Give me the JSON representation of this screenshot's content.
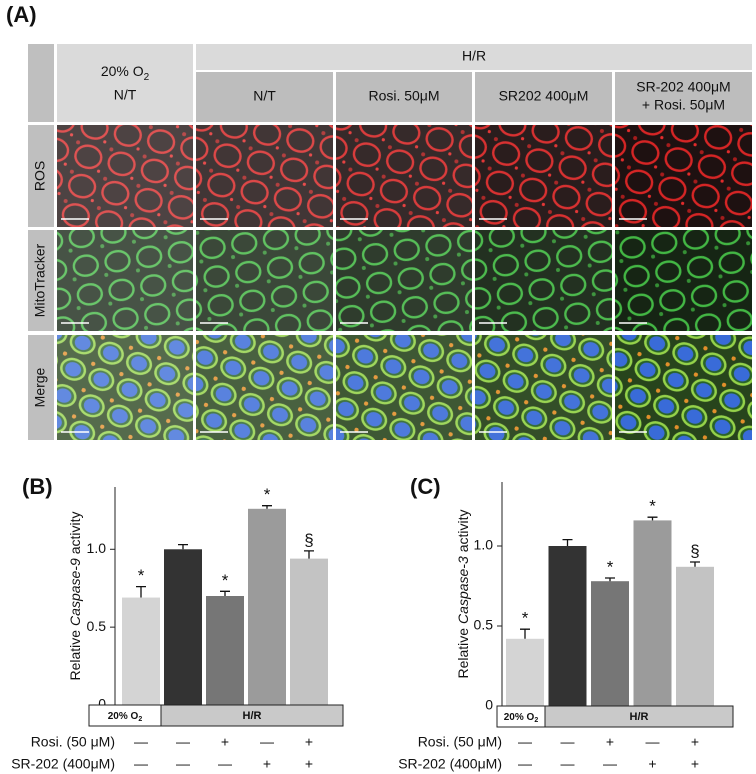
{
  "panel_a": {
    "label": "(A)",
    "header": {
      "control": {
        "text": "20% O",
        "sub": "2",
        "line2": "N/T"
      },
      "group": "H/R",
      "columns": [
        [
          "N/T"
        ],
        [
          "Rosi. 50μM"
        ],
        [
          "SR202 400μM"
        ],
        [
          "SR-202 400μM",
          "+ Rosi. 50μM"
        ]
      ]
    },
    "rows": [
      "ROS",
      "MitoTracker",
      "Merge"
    ]
  },
  "chart_data": [
    {
      "type": "bar",
      "label": "(B)",
      "ylabel": [
        "Relative",
        "Caspase-9",
        "activity"
      ],
      "values": [
        0.69,
        1.0,
        0.7,
        1.26,
        0.94
      ],
      "errors": [
        0.07,
        0.03,
        0.03,
        0.02,
        0.05
      ],
      "annotations": [
        "*",
        null,
        "*",
        "*",
        "§"
      ],
      "colors": [
        "#d4d4d4",
        "#333333",
        "#767676",
        "#9b9b9b",
        "#c3c3c3"
      ],
      "ylim": [
        0,
        1.4
      ],
      "yticks": [
        0,
        0.5,
        {
          "value": 1,
          "label": "1.0"
        }
      ],
      "groups": [
        {
          "text": "20% O",
          "sub": "2"
        },
        {
          "text": "H/R"
        }
      ],
      "conditions": [
        {
          "label": "Rosi. (50 μM)",
          "marks": [
            "—",
            "—",
            "+",
            "—",
            "+"
          ]
        },
        {
          "label": "SR-202 (400μM)",
          "marks": [
            "—",
            "—",
            "—",
            "+",
            "+"
          ]
        }
      ]
    },
    {
      "type": "bar",
      "label": "(C)",
      "ylabel": [
        "Relative",
        "Caspase-3",
        "activity"
      ],
      "values": [
        0.42,
        1.0,
        0.78,
        1.16,
        0.87
      ],
      "errors": [
        0.06,
        0.04,
        0.02,
        0.02,
        0.03
      ],
      "annotations": [
        "*",
        null,
        "*",
        "*",
        "§"
      ],
      "colors": [
        "#d4d4d4",
        "#333333",
        "#767676",
        "#9b9b9b",
        "#c3c3c3"
      ],
      "ylim": [
        0,
        1.4
      ],
      "yticks": [
        0,
        0.5,
        {
          "value": 1,
          "label": "1.0"
        }
      ],
      "groups": [
        {
          "text": "20% O",
          "sub": "2"
        },
        {
          "text": "H/R"
        }
      ],
      "conditions": [
        {
          "label": "Rosi. (50 μM)",
          "marks": [
            "—",
            "—",
            "+",
            "—",
            "+"
          ]
        },
        {
          "label": "SR-202 (400μM)",
          "marks": [
            "—",
            "—",
            "—",
            "+",
            "+"
          ]
        }
      ]
    }
  ]
}
